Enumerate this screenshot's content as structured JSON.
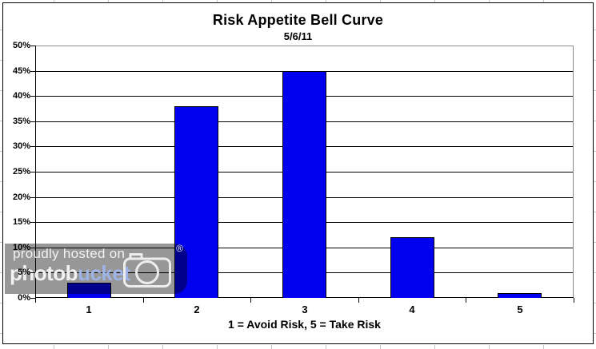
{
  "chart_data": {
    "type": "bar",
    "title": "Risk Appetite Bell Curve",
    "subtitle": "5/6/11",
    "categories": [
      "1",
      "2",
      "3",
      "4",
      "5"
    ],
    "values": [
      3,
      38,
      45,
      12,
      1
    ],
    "xlabel": "1 = Avoid Risk, 5 = Take Risk",
    "ylabel": "",
    "ylim": [
      0,
      50
    ],
    "ytick_step": 5,
    "ytick_labels": [
      "0%",
      "5%",
      "10%",
      "15%",
      "20%",
      "25%",
      "30%",
      "35%",
      "40%",
      "45%",
      "50%"
    ],
    "grid": true,
    "legend": "none",
    "bar_color": "#0000EE",
    "bar_border_color": "#000000",
    "gridline_color": "#000000",
    "plot_border_gray": "#8C8C8C"
  },
  "watermark": {
    "line1": "proudly hosted on",
    "brand_part1": "photob",
    "brand_part2": "ucket",
    "registered_symbol": "®",
    "bg_color": "#979797",
    "text_color": "#F2F2F2",
    "brand_part2_color": "#9FB4E6",
    "camera_icon": "camera-icon"
  }
}
